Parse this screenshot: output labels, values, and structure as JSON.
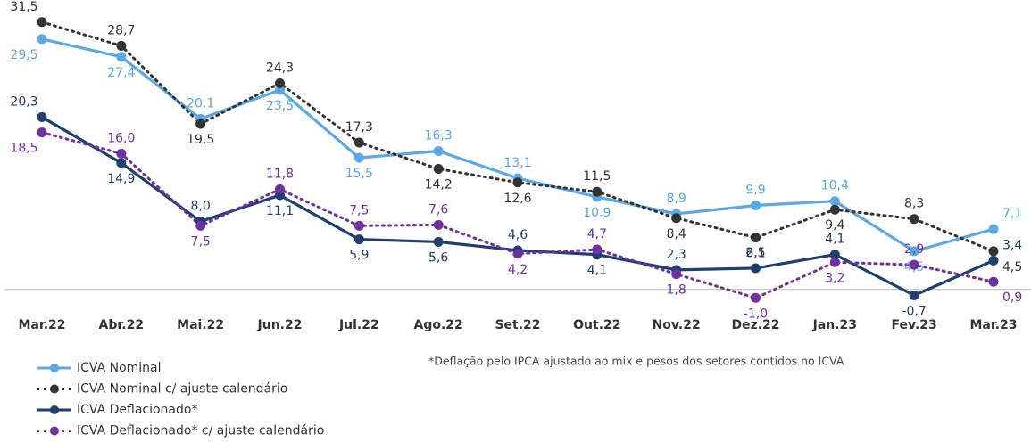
{
  "chart_data": {
    "type": "line",
    "categories": [
      "Mar.22",
      "Abr.22",
      "Mai.22",
      "Jun.22",
      "Jul.22",
      "Ago.22",
      "Set.22",
      "Out.22",
      "Nov.22",
      "Dez.22",
      "Jan.23",
      "Fev.23",
      "Mar.23"
    ],
    "ylim": [
      -1.6,
      32
    ],
    "note": "*Deflação pelo IPCA ajustado ao mix e pesos dos setores contidos no ICVA",
    "series": [
      {
        "name": "ICVA Nominal",
        "color": "#5ba8e8",
        "style": "solid",
        "values": [
          29.5,
          27.4,
          20.1,
          23.5,
          15.5,
          16.3,
          13.1,
          10.9,
          8.9,
          9.9,
          10.4,
          4.5,
          7.1
        ],
        "value_labels": [
          "29,5",
          "27,4",
          "20,1",
          "23,5",
          "15,5",
          "16,3",
          "13,1",
          "10,9",
          "8,9",
          "9,9",
          "10,4",
          "4,5",
          "7,1"
        ]
      },
      {
        "name": "ICVA Nominal c/ ajuste calendário",
        "color": "#333333",
        "style": "dotted",
        "values": [
          31.5,
          28.7,
          19.5,
          24.3,
          17.3,
          14.2,
          12.6,
          11.5,
          8.4,
          6.1,
          9.4,
          8.3,
          4.5
        ],
        "value_labels": [
          "31,5",
          "28,7",
          "19,5",
          "24,3",
          "17,3",
          "14,2",
          "12,6",
          "11,5",
          "8,4",
          "6,1",
          "9,4",
          "8,3",
          "4,5"
        ]
      },
      {
        "name": "ICVA Deflacionado*",
        "color": "#1f3f6e",
        "style": "solid",
        "values": [
          20.3,
          14.9,
          8.0,
          11.1,
          5.9,
          5.6,
          4.6,
          4.1,
          2.3,
          2.5,
          4.1,
          -0.7,
          3.4
        ],
        "value_labels": [
          "20,3",
          "14,9",
          "8,0",
          "11,1",
          "5,9",
          "5,6",
          "4,6",
          "4,1",
          "2,3",
          "2,5",
          "4,1",
          "-0,7",
          "3,4"
        ]
      },
      {
        "name": "ICVA Deflacionado* c/ ajuste calendário",
        "color": "#7030a0",
        "style": "dotted",
        "values": [
          18.5,
          16.0,
          7.5,
          11.8,
          7.5,
          7.6,
          4.2,
          4.7,
          1.8,
          -1.0,
          3.2,
          2.9,
          0.9
        ],
        "value_labels": [
          "18,5",
          "16,0",
          "7,5",
          "11,8",
          "7,5",
          "7,6",
          "4,2",
          "4,7",
          "1,8",
          "-1,0",
          "3,2",
          "2,9",
          "0,9"
        ]
      }
    ]
  }
}
